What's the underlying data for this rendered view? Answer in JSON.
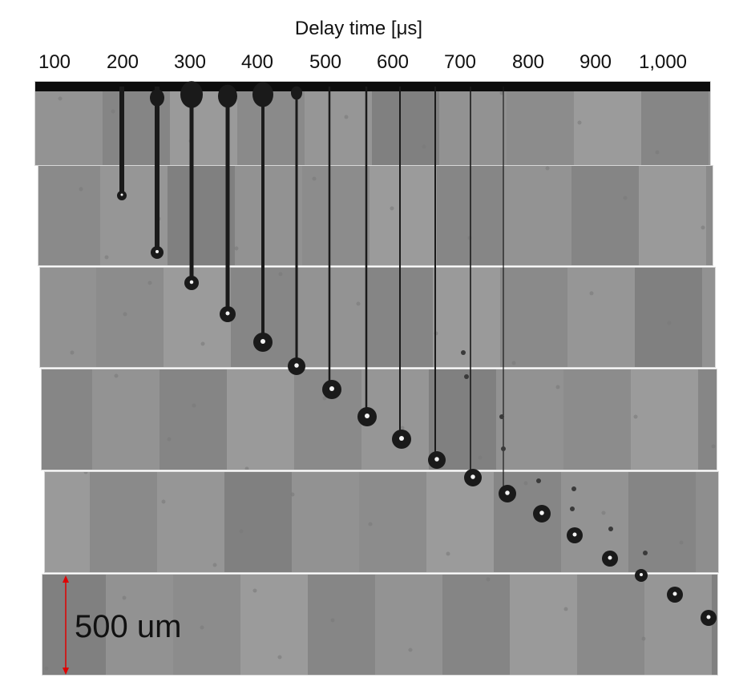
{
  "figure": {
    "title": "Delay time [μs]",
    "delay_labels": [
      "100",
      "200",
      "300",
      "400",
      "500",
      "600",
      "700",
      "800",
      "900",
      "1,000"
    ],
    "scale_bar_label": "500 um",
    "scale_bar_color": "#e00000",
    "background_gray": "#8e8e8e",
    "droplet_color": "#1a1a1a",
    "frame_count": 6
  }
}
